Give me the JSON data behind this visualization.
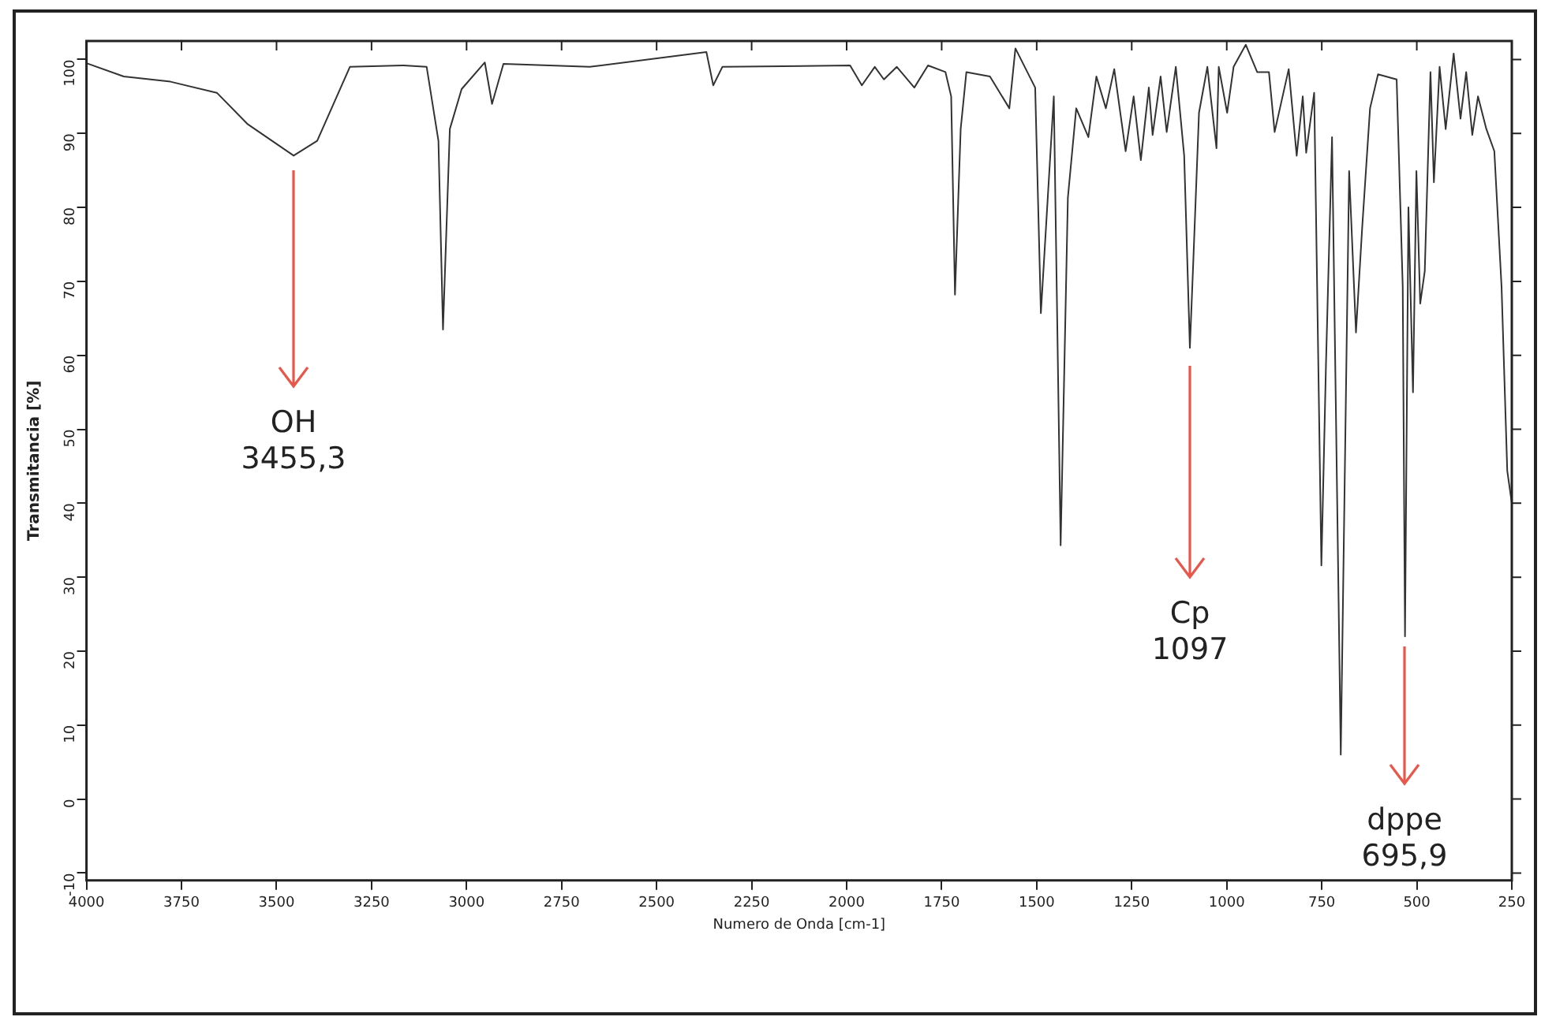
{
  "chart_data": {
    "type": "line",
    "xlabel": "Numero de Onda [cm-1]",
    "ylabel": "Transmitancia [%]",
    "xlim": [
      4000,
      250
    ],
    "xticks": [
      4000,
      3750,
      3500,
      3250,
      3000,
      2750,
      2500,
      2250,
      2000,
      1750,
      1500,
      1250,
      1000,
      750,
      500,
      250
    ],
    "ylim": [
      -11,
      102.5
    ],
    "yticks": [
      -10,
      0,
      10,
      20,
      30,
      40,
      50,
      60,
      70,
      80,
      90,
      100
    ],
    "grid": false,
    "legend": false,
    "marker": "none",
    "line_style": "solid",
    "series": [
      {
        "color": "#333333",
        "x": [
          4000,
          3902,
          3779,
          3657,
          3577,
          3455,
          3393,
          3307,
          3166,
          3105,
          3074,
          3062,
          3044,
          3013,
          2952,
          2933,
          2903,
          2676,
          2369,
          2351,
          2327,
          1991,
          1960,
          1926,
          1902,
          1868,
          1822,
          1786,
          1740,
          1725,
          1715,
          1700,
          1685,
          1623,
          1572,
          1556,
          1504,
          1489,
          1455,
          1437,
          1418,
          1396,
          1364,
          1343,
          1318,
          1296,
          1266,
          1245,
          1226,
          1205,
          1195,
          1174,
          1158,
          1134,
          1112,
          1097,
          1088,
          1073,
          1051,
          1027,
          1021,
          999,
          982,
          950,
          920,
          889,
          874,
          837,
          816,
          800,
          791,
          770,
          751,
          739,
          723,
          700,
          678,
          660,
          644,
          623,
          602,
          553,
          537,
          531,
          522,
          510,
          501,
          491,
          479,
          464,
          455,
          440,
          424,
          403,
          385,
          370,
          354,
          339,
          317,
          296,
          277,
          262,
          250
        ],
        "values": [
          99.5,
          97.7,
          97,
          95.5,
          91.3,
          87,
          89,
          99,
          99.2,
          99,
          89,
          63.5,
          90.6,
          96,
          99.6,
          94,
          99.4,
          99,
          101,
          96.5,
          99,
          99.2,
          96.5,
          99,
          97.3,
          99,
          96.2,
          99.2,
          98.3,
          95,
          68.2,
          90.6,
          98.3,
          97.7,
          93.4,
          101.5,
          96.2,
          65.7,
          95,
          34.3,
          81.3,
          93.4,
          89.5,
          97.7,
          93.4,
          98.7,
          87.6,
          95,
          86.4,
          96.2,
          89.8,
          97.7,
          90.2,
          99,
          87,
          61,
          72.7,
          92.8,
          99,
          88,
          99,
          92.8,
          99,
          102,
          98.3,
          98.3,
          90.2,
          98.7,
          87,
          95,
          87.4,
          95.5,
          31.6,
          58.6,
          89.5,
          6,
          84.9,
          63.1,
          77,
          93.4,
          98,
          97.3,
          69.3,
          22,
          80,
          55,
          84.9,
          67,
          71.4,
          98.3,
          83.4,
          99,
          90.6,
          100.8,
          92,
          98.3,
          89.8,
          95,
          90.6,
          87.6,
          69.3,
          44.4,
          40
        ]
      }
    ],
    "annotations": [
      "OH\n3455,3",
      "Cp\n1097",
      "dppe\n695,9"
    ]
  }
}
